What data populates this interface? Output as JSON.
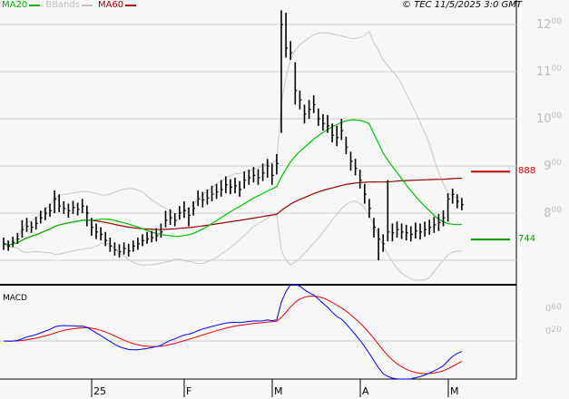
{
  "legend": [
    {
      "label": "MA20",
      "color": "#00b000"
    },
    {
      "label": "BBands",
      "color": "#c0c0c0"
    },
    {
      "label": "MA60",
      "color": "#990000"
    }
  ],
  "copyright": "© TEC 11/5/2025 3:0 GMT",
  "macd_label": "MACD",
  "chart_data": [
    {
      "type": "ohlc",
      "title": "",
      "ylim": [
        670,
        1230
      ],
      "y_ticks": [
        {
          "value": 1200,
          "big": "12",
          "small": "00"
        },
        {
          "value": 1100,
          "big": "11",
          "small": "00"
        },
        {
          "value": 1000,
          "big": "10",
          "small": "00"
        },
        {
          "value": 900,
          "big": "9",
          "small": "00"
        },
        {
          "value": 800,
          "big": "8",
          "small": "00"
        }
      ],
      "x_ticks": [
        {
          "index": 19,
          "label": "25"
        },
        {
          "index": 39,
          "label": "F"
        },
        {
          "index": 58,
          "label": "M"
        },
        {
          "index": 77,
          "label": "A"
        },
        {
          "index": 96,
          "label": "M"
        }
      ],
      "grid": true,
      "overlays": [
        "MA20",
        "BBands",
        "MA60"
      ],
      "levels": [
        {
          "value": 888,
          "label": "888",
          "color": "#cc0000"
        },
        {
          "value": 744,
          "label": "744",
          "color": "#009900"
        }
      ],
      "bars": [
        [
          748,
          722,
          735
        ],
        [
          742,
          720,
          730
        ],
        [
          750,
          728,
          738
        ],
        [
          758,
          735,
          745
        ],
        [
          785,
          748,
          765
        ],
        [
          790,
          760,
          772
        ],
        [
          782,
          758,
          770
        ],
        [
          792,
          765,
          778
        ],
        [
          805,
          778,
          790
        ],
        [
          812,
          785,
          800
        ],
        [
          820,
          792,
          805
        ],
        [
          848,
          800,
          830
        ],
        [
          840,
          802,
          815
        ],
        [
          825,
          798,
          810
        ],
        [
          820,
          790,
          805
        ],
        [
          826,
          798,
          812
        ],
        [
          822,
          795,
          808
        ],
        [
          830,
          800,
          815
        ],
        [
          816,
          772,
          800
        ],
        [
          790,
          752,
          770
        ],
        [
          778,
          745,
          760
        ],
        [
          770,
          742,
          755
        ],
        [
          760,
          730,
          742
        ],
        [
          748,
          718,
          730
        ],
        [
          738,
          710,
          722
        ],
        [
          734,
          706,
          718
        ],
        [
          738,
          712,
          725
        ],
        [
          735,
          708,
          720
        ],
        [
          742,
          718,
          730
        ],
        [
          748,
          722,
          735
        ],
        [
          755,
          730,
          742
        ],
        [
          760,
          735,
          745
        ],
        [
          762,
          738,
          748
        ],
        [
          768,
          740,
          752
        ],
        [
          778,
          748,
          760
        ],
        [
          805,
          770,
          785
        ],
        [
          808,
          775,
          790
        ],
        [
          800,
          772,
          785
        ],
        [
          815,
          786,
          800
        ],
        [
          825,
          790,
          805
        ],
        [
          812,
          772,
          795
        ],
        [
          825,
          795,
          810
        ],
        [
          848,
          815,
          830
        ],
        [
          845,
          812,
          828
        ],
        [
          850,
          818,
          832
        ],
        [
          858,
          825,
          840
        ],
        [
          862,
          830,
          845
        ],
        [
          870,
          835,
          850
        ],
        [
          878,
          842,
          860
        ],
        [
          872,
          840,
          855
        ],
        [
          875,
          842,
          858
        ],
        [
          868,
          835,
          850
        ],
        [
          888,
          852,
          870
        ],
        [
          892,
          860,
          875
        ],
        [
          898,
          865,
          880
        ],
        [
          893,
          860,
          875
        ],
        [
          905,
          868,
          885
        ],
        [
          915,
          875,
          900
        ],
        [
          905,
          860,
          880
        ],
        [
          925,
          882,
          905
        ],
        [
          1230,
          970,
          1200
        ],
        [
          1225,
          1130,
          1150
        ],
        [
          1165,
          1125,
          1140
        ],
        [
          1120,
          1030,
          1060
        ],
        [
          1060,
          1020,
          1040
        ],
        [
          1030,
          990,
          1010
        ],
        [
          1040,
          1000,
          1020
        ],
        [
          1050,
          1012,
          1030
        ],
        [
          1022,
          985,
          1000
        ],
        [
          1010,
          975,
          990
        ],
        [
          1008,
          970,
          985
        ],
        [
          990,
          950,
          965
        ],
        [
          985,
          942,
          960
        ],
        [
          1000,
          955,
          975
        ],
        [
          962,
          925,
          940
        ],
        [
          930,
          890,
          910
        ],
        [
          915,
          880,
          895
        ],
        [
          892,
          852,
          870
        ],
        [
          862,
          820,
          840
        ],
        [
          830,
          790,
          810
        ],
        [
          790,
          748,
          770
        ],
        [
          768,
          700,
          745
        ],
        [
          755,
          718,
          735
        ],
        [
          870,
          740,
          760
        ],
        [
          778,
          740,
          758
        ],
        [
          782,
          748,
          765
        ],
        [
          778,
          745,
          760
        ],
        [
          775,
          742,
          758
        ],
        [
          772,
          740,
          755
        ],
        [
          780,
          746,
          762
        ],
        [
          778,
          744,
          760
        ],
        [
          782,
          750,
          765
        ],
        [
          786,
          754,
          770
        ],
        [
          792,
          758,
          775
        ],
        [
          798,
          762,
          780
        ],
        [
          806,
          772,
          790
        ],
        [
          842,
          782,
          830
        ],
        [
          852,
          820,
          840
        ],
        [
          840,
          810,
          825
        ],
        [
          832,
          806,
          818
        ]
      ]
    },
    {
      "type": "line",
      "title": "MACD",
      "series_colors": [
        "#0000ff",
        "#dd0000"
      ],
      "y_ticks": [
        {
          "value": 60,
          "big": "0",
          "small": "60"
        },
        {
          "value": 20,
          "big": "0",
          "small": "20"
        }
      ],
      "x_ticks": [
        "25",
        "F",
        "M",
        "A",
        "M"
      ]
    }
  ]
}
